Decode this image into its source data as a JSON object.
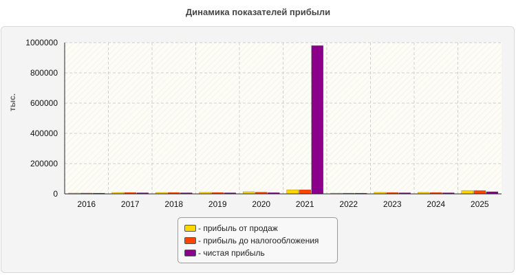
{
  "chart_data": {
    "type": "bar",
    "title": "Динамика показателей прибыли",
    "ylabel": "тыс.",
    "xlabel": "",
    "categories": [
      "2016",
      "2017",
      "2018",
      "2019",
      "2020",
      "2021",
      "2022",
      "2023",
      "2024",
      "2025"
    ],
    "ylim": [
      0,
      1000000
    ],
    "yticks": [
      "0",
      "200000",
      "400000",
      "600000",
      "800000",
      "1000000"
    ],
    "grid": true,
    "legend_position": "bottom",
    "series": [
      {
        "name": "- прибыль от продаж",
        "color": "#ffd700",
        "values": [
          5000,
          9000,
          9000,
          10000,
          14000,
          27000,
          4000,
          10000,
          10000,
          22000
        ]
      },
      {
        "name": "- прибыль до налогообложения",
        "color": "#ff4500",
        "values": [
          5000,
          9000,
          9000,
          9000,
          11000,
          27000,
          4000,
          9000,
          9000,
          22000
        ]
      },
      {
        "name": "- чистая прибыль",
        "color": "#8b008b",
        "values": [
          4000,
          7000,
          7000,
          7000,
          8000,
          980000,
          3000,
          7000,
          7000,
          14000
        ]
      }
    ]
  }
}
